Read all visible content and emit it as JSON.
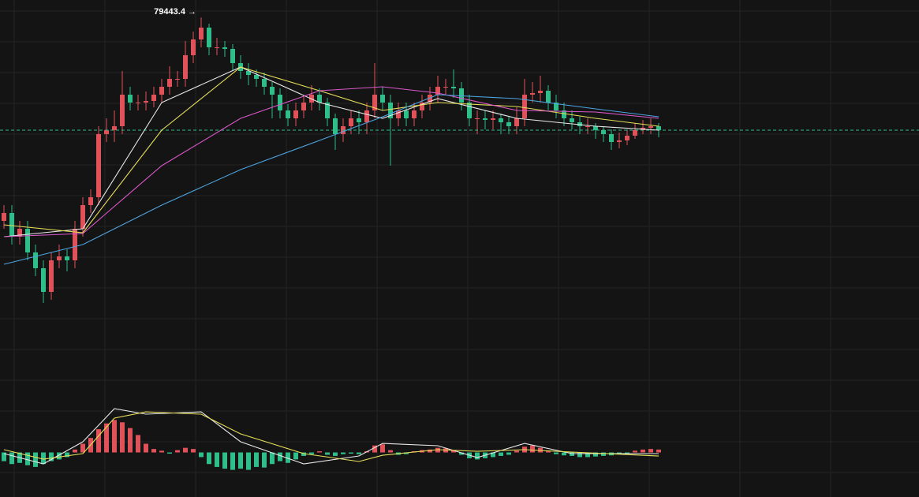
{
  "chart_data": [
    {
      "type": "candlestick",
      "ylim": [
        68000,
        80000
      ],
      "up_color": "#e0525a",
      "down_color": "#2fbd8a",
      "last_price_color": "#2fbd8a",
      "open": [
        73000,
        73250,
        72500,
        72750,
        72000,
        71500,
        70750,
        71750,
        71875,
        71750,
        72750,
        73500,
        73750,
        75750,
        75875,
        76000,
        77000,
        76750,
        76750,
        76800,
        77000,
        77250,
        77500,
        77500,
        78250,
        78750,
        79125,
        78500,
        78500,
        78450,
        78000,
        77750,
        77625,
        77500,
        77250,
        77000,
        76500,
        76250,
        76500,
        76750,
        77000,
        76750,
        76250,
        75750,
        76000,
        76250,
        76125,
        76500,
        77000,
        76750,
        76250,
        76500,
        76250,
        76500,
        76750,
        77000,
        77250,
        77250,
        77200,
        76750,
        76250,
        76250,
        76200,
        76250,
        76125,
        76000,
        76250,
        77000,
        77050,
        77125,
        76750,
        76500,
        76250,
        76125,
        76000,
        76000,
        75875,
        75750,
        75500,
        75550,
        75700,
        75875,
        75950,
        76000
      ],
      "high": [
        73500,
        73500,
        73000,
        73000,
        72250,
        71750,
        72000,
        72250,
        72100,
        73000,
        73750,
        74000,
        76000,
        76250,
        76500,
        77750,
        77250,
        77000,
        77100,
        77250,
        77500,
        77900,
        77750,
        78700,
        79000,
        79443.4,
        79250,
        78800,
        78700,
        78600,
        78250,
        78000,
        77800,
        77700,
        77400,
        77200,
        76700,
        76750,
        77000,
        77300,
        77200,
        76900,
        76400,
        76250,
        76500,
        76500,
        76750,
        78000,
        77250,
        77000,
        76750,
        76750,
        76750,
        77000,
        77250,
        77600,
        77500,
        77800,
        77400,
        77000,
        76500,
        76500,
        76500,
        76400,
        76300,
        76600,
        77500,
        77400,
        77600,
        77300,
        77000,
        76750,
        76500,
        76300,
        76250,
        76100,
        76000,
        75900,
        75800,
        75900,
        76100,
        76200,
        76250,
        76100
      ],
      "low": [
        72750,
        72250,
        72250,
        71750,
        71250,
        70400,
        70500,
        71500,
        71400,
        71500,
        72500,
        73250,
        73500,
        75500,
        75500,
        75750,
        76500,
        76500,
        76500,
        76600,
        76750,
        77000,
        77250,
        77250,
        78000,
        78500,
        78250,
        78250,
        78200,
        77750,
        77500,
        77300,
        77250,
        77000,
        76250,
        76250,
        76000,
        76000,
        76250,
        76500,
        76500,
        76000,
        75250,
        75500,
        75750,
        75750,
        75750,
        76250,
        76500,
        74750,
        76000,
        76000,
        76000,
        76250,
        76500,
        76750,
        77000,
        76900,
        76500,
        76000,
        75750,
        75900,
        75900,
        75750,
        75750,
        75750,
        76000,
        76750,
        76750,
        76500,
        76250,
        76000,
        75900,
        75750,
        75750,
        75600,
        75500,
        75250,
        75300,
        75400,
        75600,
        75750,
        75750,
        75650
      ],
      "close": [
        73250,
        72500,
        72750,
        72000,
        71500,
        70750,
        71750,
        71875,
        71750,
        72750,
        73500,
        73750,
        75750,
        75875,
        76000,
        77000,
        76750,
        76750,
        76800,
        77000,
        77250,
        77500,
        77500,
        78250,
        78750,
        79125,
        78500,
        78500,
        78450,
        78000,
        77750,
        77625,
        77500,
        77250,
        77000,
        76500,
        76250,
        76500,
        76750,
        77000,
        76750,
        76250,
        75750,
        76000,
        76250,
        76125,
        76500,
        77000,
        76750,
        76250,
        76500,
        76250,
        76500,
        76750,
        77000,
        77250,
        77250,
        77200,
        76750,
        76250,
        76250,
        76200,
        76250,
        76125,
        76000,
        76250,
        77000,
        77050,
        77125,
        76750,
        76500,
        76250,
        76125,
        76000,
        76000,
        75875,
        75750,
        75500,
        75550,
        75700,
        75875,
        75950,
        76000,
        75875
      ],
      "lines": [
        {
          "color": "#e8e8e8",
          "x": [
            0,
            10,
            20,
            30,
            40,
            48,
            55,
            65,
            75,
            83
          ],
          "values": [
            72500,
            72750,
            76750,
            77875,
            76750,
            76250,
            76875,
            76250,
            76000,
            75875
          ]
        },
        {
          "color": "#e6df5a",
          "x": [
            0,
            10,
            20,
            30,
            40,
            48,
            55,
            65,
            75,
            83
          ],
          "values": [
            72875,
            72625,
            75875,
            77875,
            77125,
            76500,
            76750,
            76625,
            76250,
            76000
          ]
        },
        {
          "color": "#d957c8",
          "x": [
            0,
            10,
            20,
            30,
            40,
            48,
            55,
            65,
            75,
            83
          ],
          "values": [
            72500,
            72600,
            74750,
            76250,
            77125,
            77250,
            77050,
            76500,
            76450,
            76250
          ]
        },
        {
          "color": "#4ca3e0",
          "x": [
            0,
            10,
            20,
            30,
            40,
            48,
            55,
            65,
            75,
            83
          ],
          "values": [
            71625,
            72250,
            73500,
            74625,
            75550,
            76300,
            77000,
            76875,
            76550,
            76300
          ]
        }
      ],
      "annotation": {
        "label": "79443.4 →",
        "value": 79443.4,
        "x": 25
      }
    },
    {
      "type": "macd",
      "ylim": [
        -700,
        1000
      ],
      "up_color": "#e0525a",
      "down_color": "#2fbd8a",
      "histogram": [
        -150,
        -200,
        -180,
        -220,
        -250,
        -200,
        -150,
        -120,
        -80,
        50,
        150,
        250,
        400,
        500,
        560,
        520,
        420,
        300,
        150,
        60,
        30,
        -20,
        40,
        80,
        60,
        -80,
        -200,
        -250,
        -280,
        -300,
        -280,
        -300,
        -250,
        -260,
        -200,
        -150,
        -180,
        -120,
        -60,
        -30,
        20,
        -40,
        -60,
        -30,
        -20,
        -30,
        20,
        120,
        140,
        40,
        -40,
        -30,
        20,
        40,
        50,
        80,
        70,
        40,
        -40,
        -100,
        -120,
        -100,
        -80,
        -60,
        -40,
        30,
        100,
        120,
        80,
        20,
        -30,
        -50,
        -60,
        -80,
        -80,
        -70,
        -60,
        -50,
        -30,
        -20,
        30,
        50,
        60,
        50
      ],
      "lines": [
        {
          "color": "#e8e8e8",
          "x": [
            0,
            5,
            10,
            14,
            18,
            25,
            30,
            38,
            45,
            48,
            55,
            60,
            66,
            72,
            83
          ],
          "values": [
            -20,
            -197,
            184,
            755,
            660,
            700,
            184,
            -197,
            -61,
            156,
            116,
            -88,
            156,
            -20,
            -20
          ]
        },
        {
          "color": "#e6df5a",
          "x": [
            0,
            5,
            10,
            14,
            18,
            25,
            30,
            38,
            45,
            48,
            55,
            60,
            66,
            72,
            83
          ],
          "values": [
            48,
            -116,
            -20,
            592,
            700,
            660,
            320,
            -20,
            -156,
            -48,
            48,
            20,
            48,
            7,
            -61
          ]
        }
      ]
    }
  ]
}
